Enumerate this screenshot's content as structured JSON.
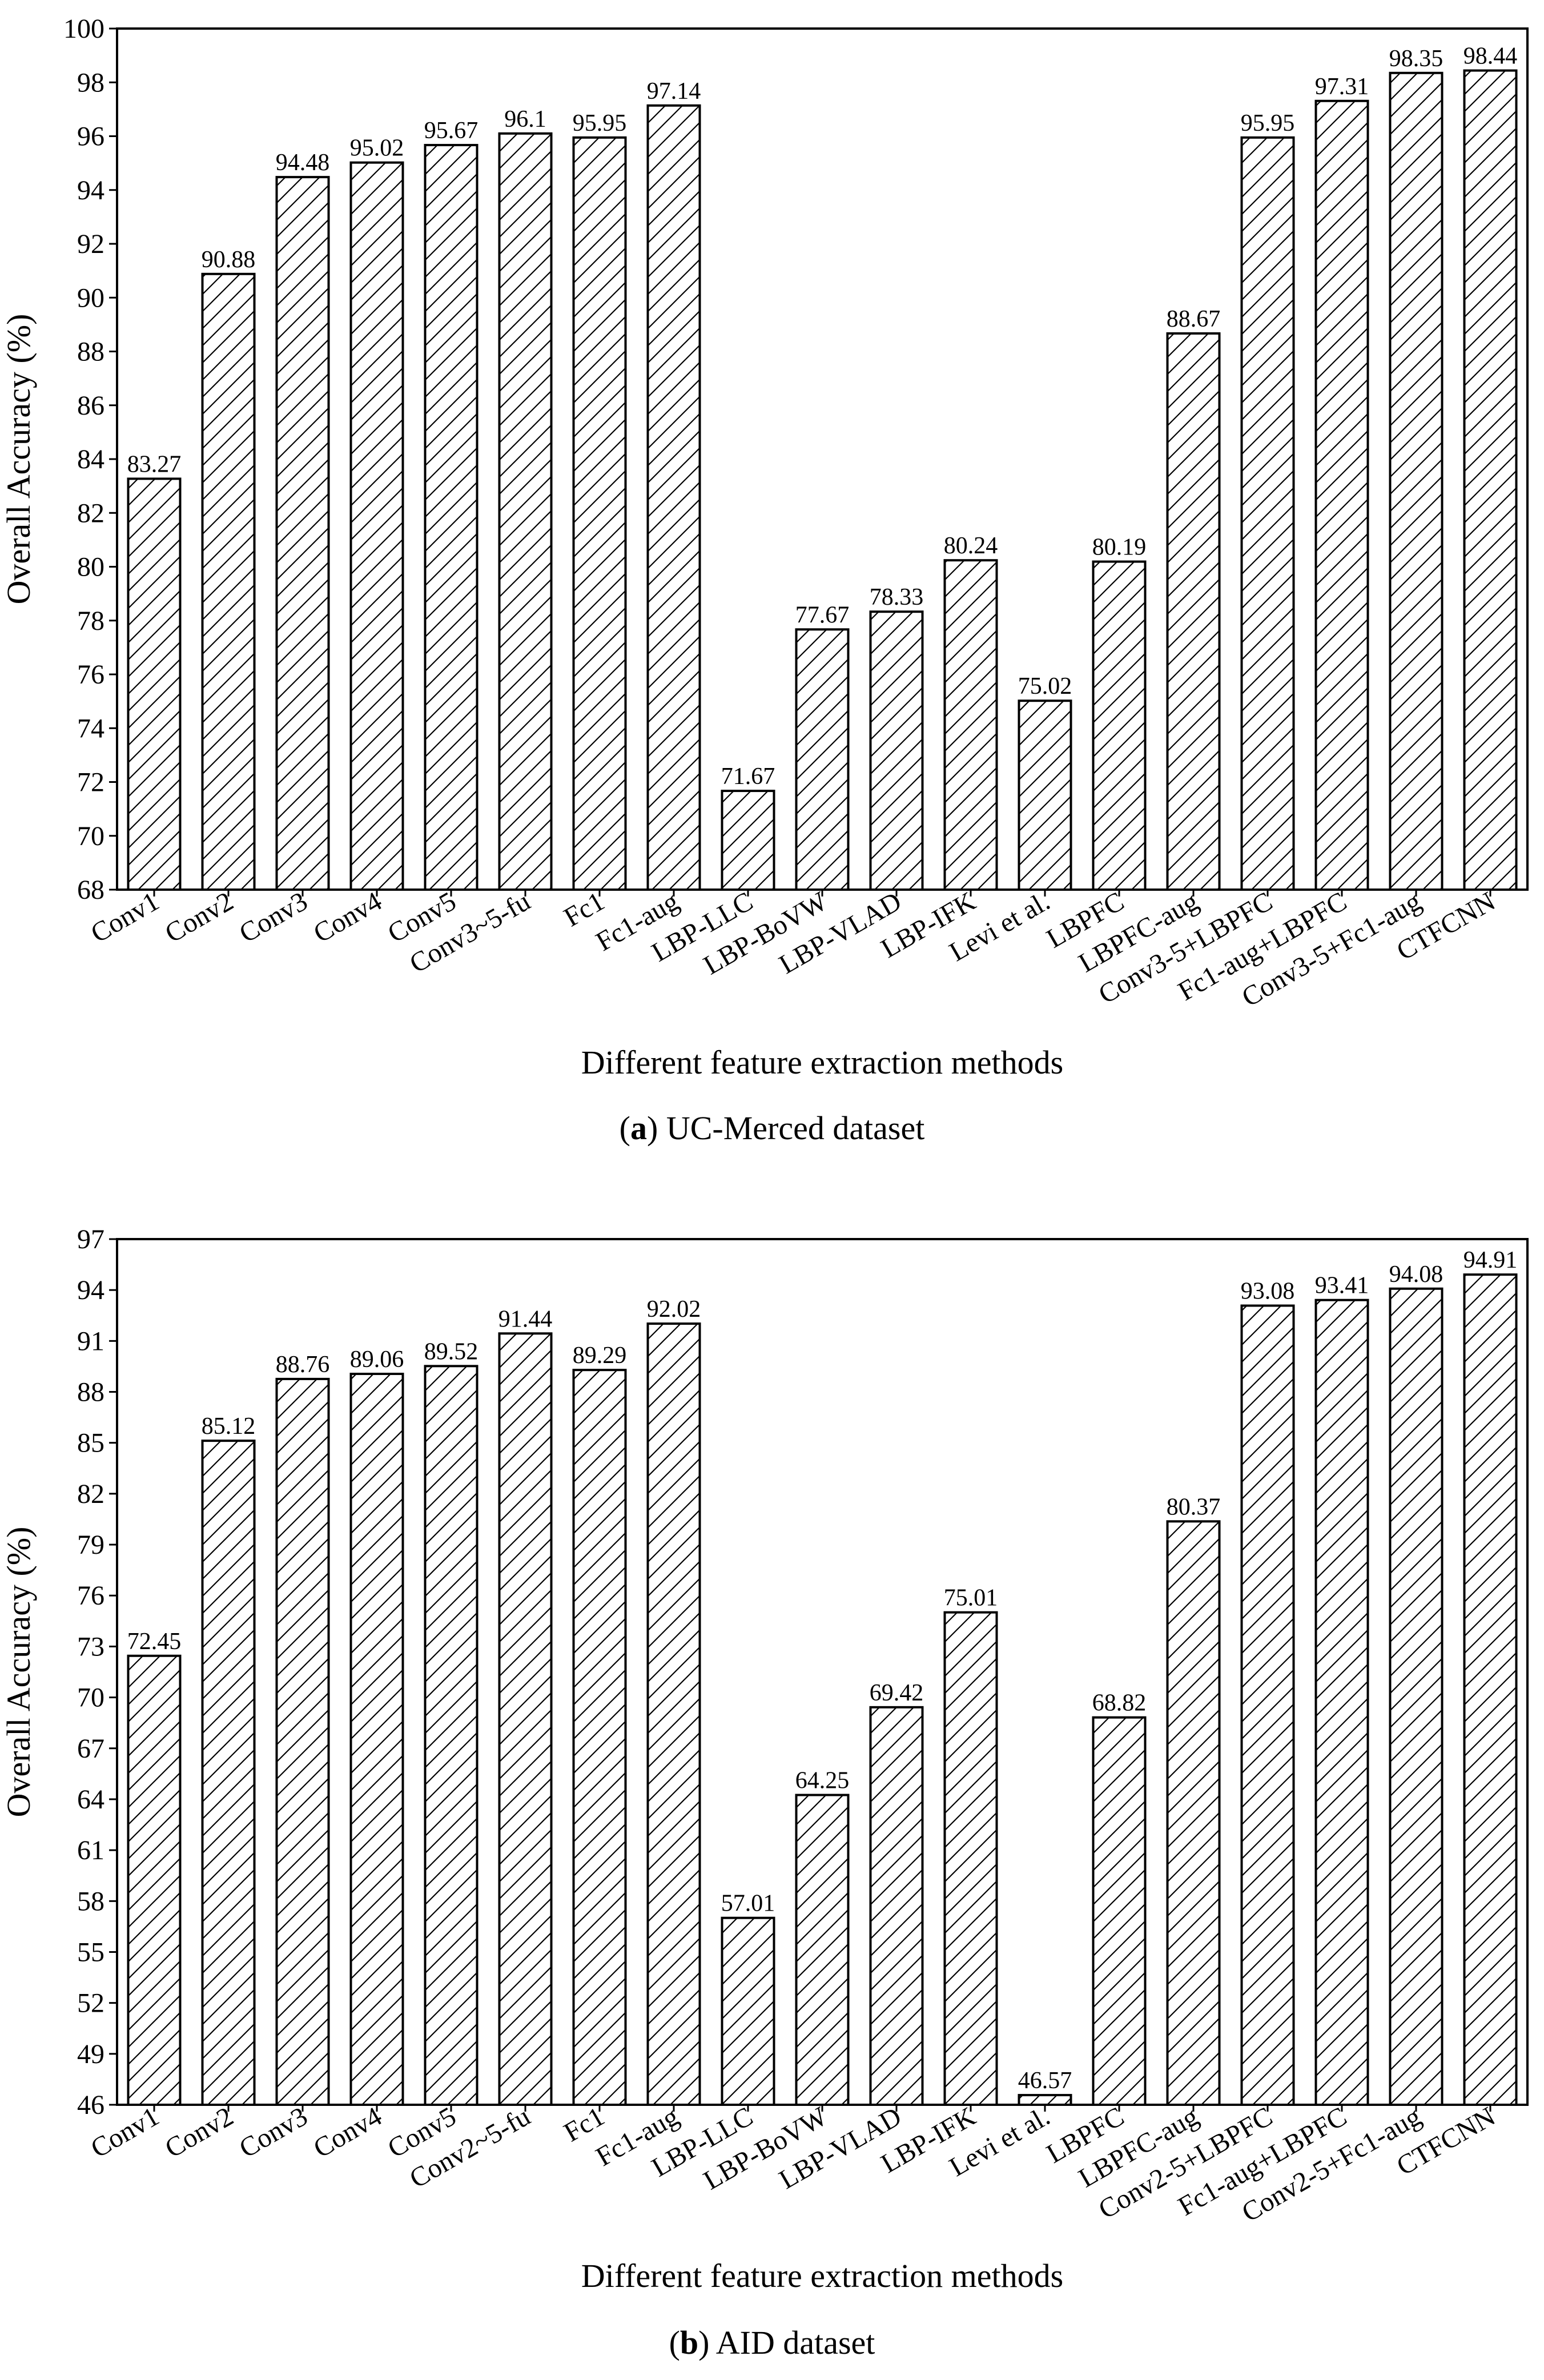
{
  "chart_data": [
    {
      "type": "bar",
      "title": "",
      "caption_letter": "a",
      "caption_text": "UC-Merced dataset",
      "xlabel": "Different feature extraction methods",
      "ylabel": "Overall Accuracy (%)",
      "ylim": [
        68,
        100
      ],
      "yticks": [
        68,
        70,
        72,
        74,
        76,
        78,
        80,
        82,
        84,
        86,
        88,
        90,
        92,
        94,
        96,
        98,
        100
      ],
      "pattern": "hatched",
      "categories": [
        "Conv1",
        "Conv2",
        "Conv3",
        "Conv4",
        "Conv5",
        "Conv3~5-fu",
        "Fc1",
        "Fc1-aug",
        "LBP-LLC",
        "LBP-BoVW",
        "LBP-VLAD",
        "LBP-IFK",
        "Levi et al.",
        "LBPFC",
        "LBPFC-aug",
        "Conv3-5+LBPFC",
        "Fc1-aug+LBPFC",
        "Conv3-5+Fc1-aug",
        "CTFCNN"
      ],
      "values": [
        83.27,
        90.88,
        94.48,
        95.02,
        95.67,
        96.1,
        95.95,
        97.14,
        71.67,
        77.67,
        78.33,
        80.24,
        75.02,
        80.19,
        88.67,
        95.95,
        97.31,
        98.35,
        98.44
      ],
      "value_labels": [
        "83.27",
        "90.88",
        "94.48",
        "95.02",
        "95.67",
        "96.1",
        "95.95",
        "97.14",
        "71.67",
        "77.67",
        "78.33",
        "80.24",
        "75.02",
        "80.19",
        "88.67",
        "95.95",
        "97.31",
        "98.35",
        "98.44"
      ]
    },
    {
      "type": "bar",
      "title": "",
      "caption_letter": "b",
      "caption_text": "AID dataset",
      "xlabel": "Different feature extraction methods",
      "ylabel": "Overall Accuracy (%)",
      "ylim": [
        46,
        97
      ],
      "yticks": [
        46,
        49,
        52,
        55,
        58,
        61,
        64,
        67,
        70,
        73,
        76,
        79,
        82,
        85,
        88,
        91,
        94,
        97
      ],
      "pattern": "hatched",
      "categories": [
        "Conv1",
        "Conv2",
        "Conv3",
        "Conv4",
        "Conv5",
        "Conv2~5-fu",
        "Fc1",
        "Fc1-aug",
        "LBP-LLC",
        "LBP-BoVW",
        "LBP-VLAD",
        "LBP-IFK",
        "Levi et al.",
        "LBPFC",
        "LBPFC-aug",
        "Conv2-5+LBPFC",
        "Fc1-aug+LBPFC",
        "Conv2-5+Fc1-aug",
        "CTFCNN"
      ],
      "values": [
        72.45,
        85.12,
        88.76,
        89.06,
        89.52,
        91.44,
        89.29,
        92.02,
        57.01,
        64.25,
        69.42,
        75.01,
        46.57,
        68.82,
        80.37,
        93.08,
        93.41,
        94.08,
        94.91
      ],
      "value_labels": [
        "72.45",
        "85.12",
        "88.76",
        "89.06",
        "89.52",
        "91.44",
        "89.29",
        "92.02",
        "57.01",
        "64.25",
        "69.42",
        "75.01",
        "46.57",
        "68.82",
        "80.37",
        "93.08",
        "93.41",
        "94.08",
        "94.91"
      ]
    }
  ]
}
